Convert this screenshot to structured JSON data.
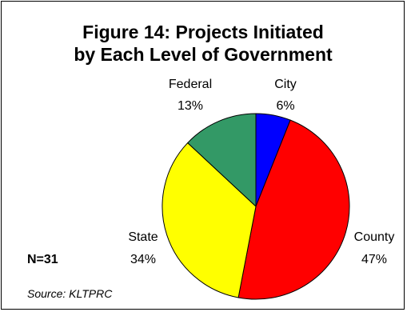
{
  "chart_data": {
    "type": "pie",
    "title_lines": [
      "Figure 14: Projects Initiated",
      "by Each Level of Government"
    ],
    "slices": [
      {
        "label": "City",
        "percent_label": "6%",
        "value": 6,
        "color": "#0000FF"
      },
      {
        "label": "County",
        "percent_label": "47%",
        "value": 47,
        "color": "#FF0000"
      },
      {
        "label": "State",
        "percent_label": "34%",
        "value": 34,
        "color": "#FFFF00"
      },
      {
        "label": "Federal",
        "percent_label": "13%",
        "value": 13,
        "color": "#339966"
      }
    ],
    "start": "12 o'clock",
    "direction": "clockwise",
    "n_label": "N=31",
    "source": "Source: KLTPRC"
  }
}
